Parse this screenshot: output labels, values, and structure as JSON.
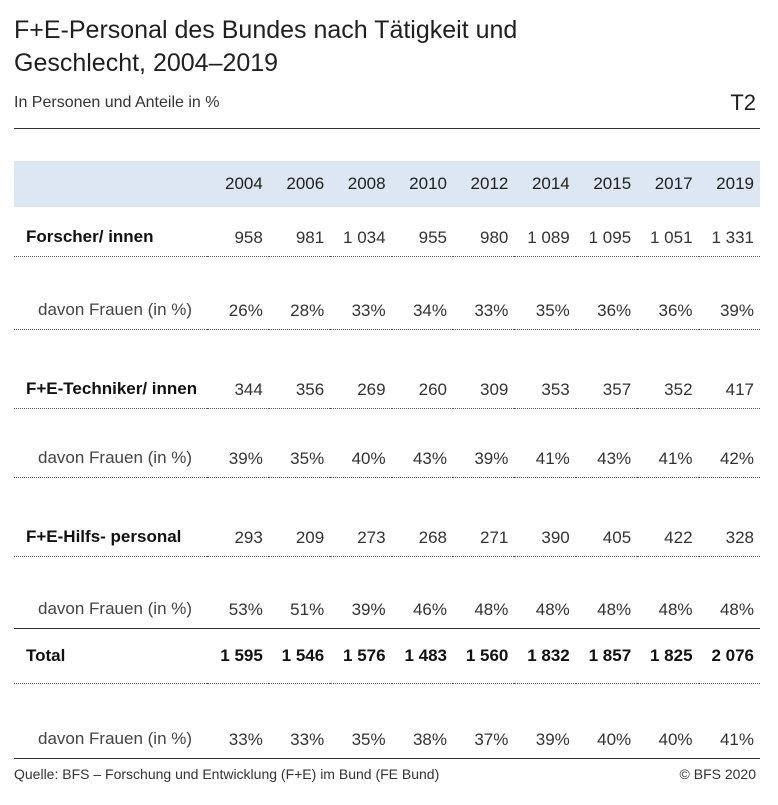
{
  "title": "F+E-Personal des Bundes nach Tätigkeit und Geschlecht, 2004–2019",
  "subtitle": "In Personen und Anteile in %",
  "table_code": "T2",
  "source": "Quelle: BFS – Forschung und Entwicklung (F+E) im Bund (FE Bund)",
  "copyright": "© BFS 2020",
  "colors": {
    "header_band": "#dde6f3"
  },
  "chart_data": {
    "type": "table",
    "title": "F+E-Personal des Bundes nach Tätigkeit und Geschlecht, 2004–2019",
    "subtitle": "In Personen und Anteile in %",
    "columns": [
      "2004",
      "2006",
      "2008",
      "2010",
      "2012",
      "2014",
      "2015",
      "2017",
      "2019"
    ],
    "rows": [
      {
        "label": "Forscher/ innen",
        "values": [
          "958",
          "981",
          "1 034",
          "955",
          "980",
          "1 089",
          "1 095",
          "1 051",
          "1 331"
        ],
        "kind": "main"
      },
      {
        "label": "davon Frauen (in %)",
        "values": [
          "26%",
          "28%",
          "33%",
          "34%",
          "33%",
          "35%",
          "36%",
          "36%",
          "39%"
        ],
        "kind": "sub"
      },
      {
        "label": "F+E-Techniker/ innen",
        "values": [
          "344",
          "356",
          "269",
          "260",
          "309",
          "353",
          "357",
          "352",
          "417"
        ],
        "kind": "main"
      },
      {
        "label": "davon Frauen (in %)",
        "values": [
          "39%",
          "35%",
          "40%",
          "43%",
          "39%",
          "41%",
          "43%",
          "41%",
          "42%"
        ],
        "kind": "sub"
      },
      {
        "label": "F+E-Hilfs- personal",
        "values": [
          "293",
          "209",
          "273",
          "268",
          "271",
          "390",
          "405",
          "422",
          "328"
        ],
        "kind": "main"
      },
      {
        "label": "davon Frauen (in %)",
        "values": [
          "53%",
          "51%",
          "39%",
          "46%",
          "48%",
          "48%",
          "48%",
          "48%",
          "48%"
        ],
        "kind": "sub"
      },
      {
        "label": "Total",
        "values": [
          "1 595",
          "1 546",
          "1 576",
          "1 483",
          "1 560",
          "1 832",
          "1 857",
          "1 825",
          "2 076"
        ],
        "kind": "total"
      },
      {
        "label": "davon Frauen (in %)",
        "values": [
          "33%",
          "33%",
          "35%",
          "38%",
          "37%",
          "39%",
          "40%",
          "40%",
          "41%"
        ],
        "kind": "sub"
      }
    ]
  }
}
